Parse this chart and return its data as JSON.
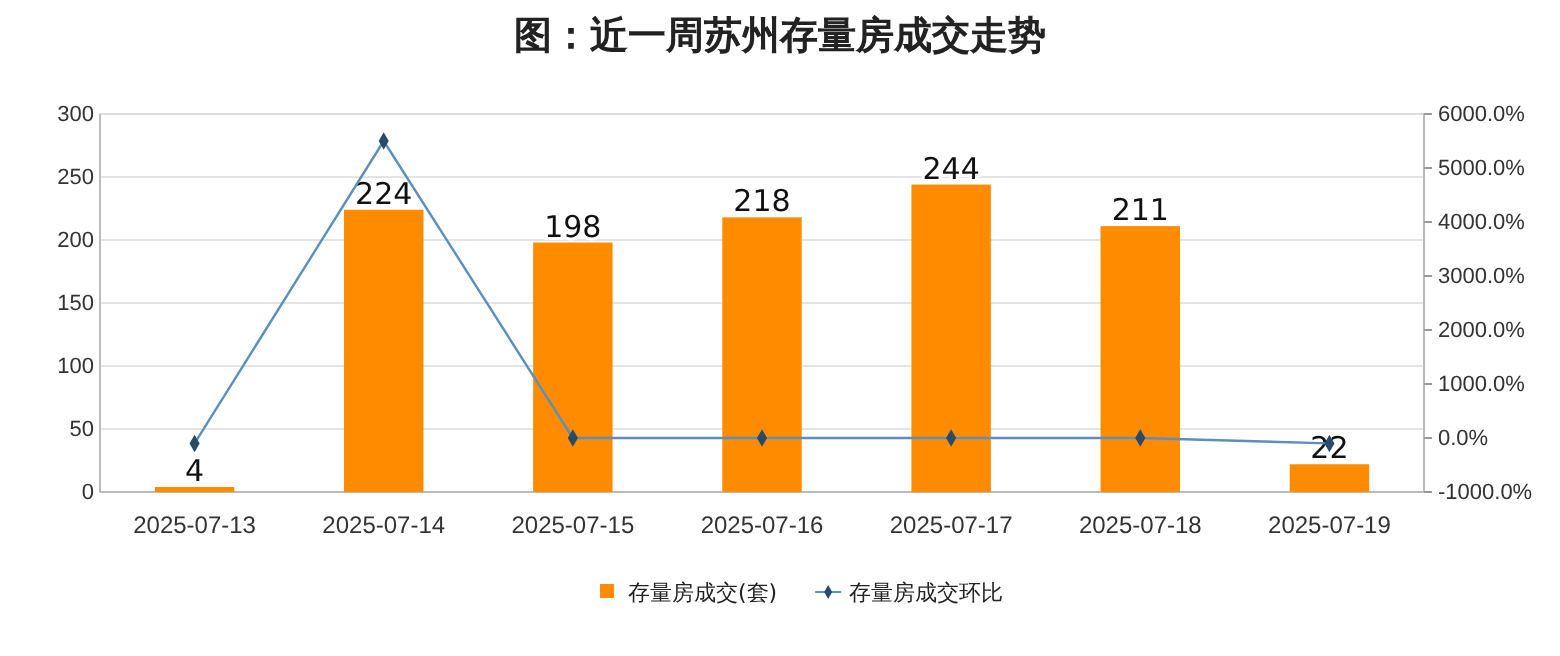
{
  "chart_data": {
    "type": "bar",
    "title": "图：近一周苏州存量房成交走势",
    "categories": [
      "2025-07-13",
      "2025-07-14",
      "2025-07-15",
      "2025-07-16",
      "2025-07-17",
      "2025-07-18",
      "2025-07-19"
    ],
    "series": [
      {
        "name": "存量房成交(套)",
        "color": "#ff8c00",
        "values": [
          4,
          224,
          198,
          218,
          244,
          211,
          22
        ],
        "data_labels": true
      },
      {
        "name": "存量房成交环比",
        "type": "line",
        "axis": "y2",
        "color": "#5b8fc0",
        "marker": "diamond",
        "values": [
          -100,
          5500,
          0,
          0,
          0,
          0,
          -100
        ]
      }
    ],
    "ylim": [
      0,
      300
    ],
    "yticks": [
      0,
      50,
      100,
      150,
      200,
      250,
      300
    ],
    "y2lim": [
      -1000,
      6000
    ],
    "y2ticks": [
      {
        "value": -1000,
        "label": "-1000.0%"
      },
      {
        "value": 0,
        "label": "0.0%"
      },
      {
        "value": 1000,
        "label": "1000.0%"
      },
      {
        "value": 2000,
        "label": "2000.0%"
      },
      {
        "value": 3000,
        "label": "3000.0%"
      },
      {
        "value": 4000,
        "label": "4000.0%"
      },
      {
        "value": 5000,
        "label": "5000.0%"
      },
      {
        "value": 6000,
        "label": "6000.0%"
      }
    ],
    "grid": "y",
    "legend": "bottom"
  }
}
